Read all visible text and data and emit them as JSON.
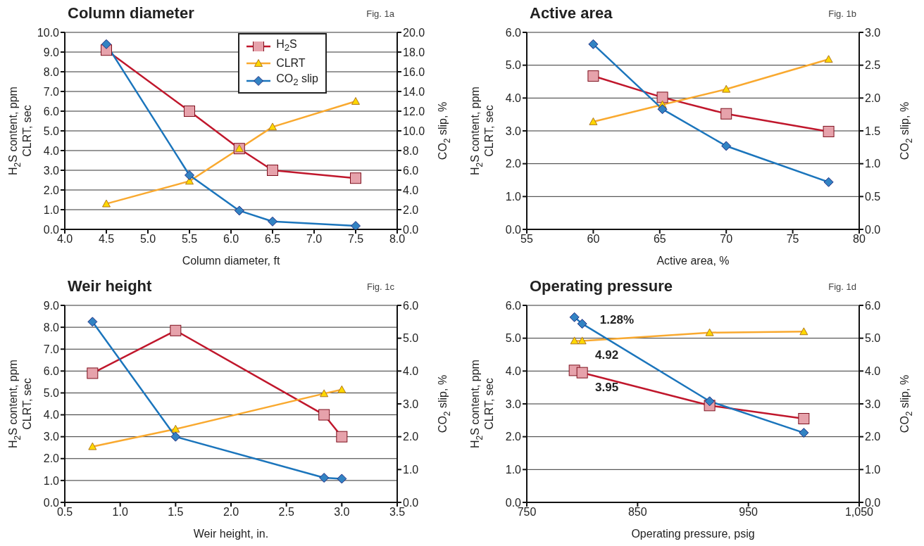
{
  "chart_data": [
    {
      "type": "line",
      "title": "Column diameter",
      "subtitle": "Fig. 1a",
      "xlabel": "Column diameter, ft",
      "ylabel": "H$_{2}$S content, ppm\nCLRT, sec",
      "y2label": "CO$_{2}$ slip, %",
      "legend": "top right",
      "grid": "y",
      "x": [
        4.5,
        5.5,
        6.1,
        6.5,
        7.5
      ],
      "series": [
        {
          "name": "H$_{2}$S",
          "color": "#c0172c",
          "marker": "square",
          "values": [
            9.1,
            6.0,
            4.1,
            3.0,
            2.6
          ]
        },
        {
          "name": "CLRT",
          "color": "#f9a92f",
          "marker": "triangle",
          "values": [
            1.3,
            2.45,
            4.1,
            5.2,
            6.5
          ]
        },
        {
          "name": "CO$_{2}$ slip",
          "color": "#1b75bc",
          "marker": "diamond",
          "axis": "y2",
          "values": [
            18.8,
            5.5,
            1.9,
            0.8,
            0.35
          ]
        }
      ],
      "xlim": [
        4,
        8
      ],
      "xticks": [
        {
          "value": 4,
          "label": "4.0"
        },
        {
          "value": 4.5,
          "label": "4.5"
        },
        {
          "value": 5,
          "label": "5.0"
        },
        {
          "value": 5.5,
          "label": "5.5"
        },
        {
          "value": 6,
          "label": "6.0"
        },
        {
          "value": 6.5,
          "label": "6.5"
        },
        {
          "value": 7,
          "label": "7.0"
        },
        {
          "value": 7.5,
          "label": "7.5"
        },
        {
          "value": 8,
          "label": "8.0"
        }
      ],
      "ylim": [
        0,
        10
      ],
      "yticks": [
        {
          "value": 0,
          "label": "0.0"
        },
        {
          "value": 1,
          "label": "1.0"
        },
        {
          "value": 2,
          "label": "2.0"
        },
        {
          "value": 3,
          "label": "3.0"
        },
        {
          "value": 4,
          "label": "4.0"
        },
        {
          "value": 5,
          "label": "5.0"
        },
        {
          "value": 6,
          "label": "6.0"
        },
        {
          "value": 7,
          "label": "7.0"
        },
        {
          "value": 8,
          "label": "8.0"
        },
        {
          "value": 9,
          "label": "9.0"
        },
        {
          "value": 10,
          "label": "10.0"
        }
      ],
      "y2lim": [
        0,
        20
      ],
      "y2ticks": [
        {
          "value": 0,
          "label": "0.0"
        },
        {
          "value": 2,
          "label": "2.0"
        },
        {
          "value": 4,
          "label": "4.0"
        },
        {
          "value": 6,
          "label": "6.0"
        },
        {
          "value": 8,
          "label": "8.0"
        },
        {
          "value": 10,
          "label": "10.0"
        },
        {
          "value": 12,
          "label": "12.0"
        },
        {
          "value": 14,
          "label": "14.0"
        },
        {
          "value": 16,
          "label": "16.0"
        },
        {
          "value": 18,
          "label": "18.0"
        },
        {
          "value": 20,
          "label": "20.0"
        }
      ]
    },
    {
      "type": "line",
      "title": "Active area",
      "subtitle": "Fig. 1b",
      "xlabel": "Active area, %",
      "ylabel": "H$_{2}$S content, ppm\nCLRT, sec",
      "y2label": "CO$_{2}$ slip, %",
      "grid": "y",
      "x": [
        60,
        65.2,
        70,
        77.7
      ],
      "series": [
        {
          "color": "#c0172c",
          "marker": "square",
          "values": [
            4.67,
            4.02,
            3.52,
            2.98
          ]
        },
        {
          "color": "#f9a92f",
          "marker": "triangle",
          "values": [
            3.28,
            3.8,
            4.27,
            5.18
          ]
        },
        {
          "color": "#1b75bc",
          "marker": "diamond",
          "axis": "y2",
          "values": [
            2.82,
            1.83,
            1.27,
            0.72
          ]
        }
      ],
      "xlim": [
        55,
        80
      ],
      "xticks": [
        55,
        60,
        65,
        70,
        75,
        80
      ],
      "ylim": [
        0,
        6
      ],
      "yticks": [
        {
          "value": 0,
          "label": "0.0"
        },
        {
          "value": 1,
          "label": "1.0"
        },
        {
          "value": 2,
          "label": "2.0"
        },
        {
          "value": 3,
          "label": "3.0"
        },
        {
          "value": 4,
          "label": "4.0"
        },
        {
          "value": 5,
          "label": "5.0"
        },
        {
          "value": 6,
          "label": "6.0"
        }
      ],
      "y2lim": [
        0,
        3
      ],
      "y2ticks": [
        {
          "value": 0,
          "label": "0.0"
        },
        {
          "value": 0.5,
          "label": "0.5"
        },
        {
          "value": 1,
          "label": "1.0"
        },
        {
          "value": 1.5,
          "label": "1.5"
        },
        {
          "value": 2,
          "label": "2.0"
        },
        {
          "value": 2.5,
          "label": "2.5"
        },
        {
          "value": 3,
          "label": "3.0"
        }
      ]
    },
    {
      "type": "line",
      "title": "Weir height",
      "subtitle": "Fig. 1c",
      "xlabel": "Weir height, in.",
      "ylabel": "H$_{2}$S content, ppm\nCLRT, sec",
      "y2label": "CO$_{2}$ slip, %",
      "grid": "y",
      "x": [
        0.75,
        1.5,
        2.84,
        3.0
      ],
      "series": [
        {
          "color": "#c0172c",
          "marker": "square",
          "values": [
            5.9,
            7.85,
            4.0,
            3.0
          ]
        },
        {
          "color": "#f9a92f",
          "marker": "triangle",
          "values": [
            2.55,
            3.35,
            4.97,
            5.15
          ]
        },
        {
          "color": "#1b75bc",
          "marker": "diamond",
          "axis": "y2",
          "values": [
            5.5,
            2.0,
            0.75,
            0.72
          ]
        }
      ],
      "xlim": [
        0.5,
        3.5
      ],
      "xticks": [
        0.5,
        {
          "value": 1,
          "label": "1.0"
        },
        1.5,
        {
          "value": 2,
          "label": "2.0"
        },
        2.5,
        {
          "value": 3,
          "label": "3.0"
        },
        3.5
      ],
      "ylim": [
        0,
        9
      ],
      "yticks": [
        {
          "value": 0,
          "label": "0.0"
        },
        {
          "value": 1,
          "label": "1.0"
        },
        {
          "value": 2,
          "label": "2.0"
        },
        {
          "value": 3,
          "label": "3.0"
        },
        {
          "value": 4,
          "label": "4.0"
        },
        {
          "value": 5,
          "label": "5.0"
        },
        {
          "value": 6,
          "label": "6.0"
        },
        {
          "value": 7,
          "label": "7.0"
        },
        {
          "value": 8,
          "label": "8.0"
        },
        {
          "value": 9,
          "label": "9.0"
        }
      ],
      "y2lim": [
        0,
        6
      ],
      "y2ticks": [
        {
          "value": 0,
          "label": "0.0"
        },
        {
          "value": 1,
          "label": "1.0"
        },
        {
          "value": 2,
          "label": "2.0"
        },
        {
          "value": 3,
          "label": "3.0"
        },
        {
          "value": 4,
          "label": "4.0"
        },
        {
          "value": 5,
          "label": "5.0"
        },
        {
          "value": 6,
          "label": "6.0"
        }
      ]
    },
    {
      "type": "line",
      "title": "Operating pressure",
      "subtitle": "Fig. 1d",
      "xlabel": "Operating pressure, psig",
      "ylabel": "H$_{2}$S content, ppm\nCLRT, sec",
      "y2label": "CO$_{2}$ slip, %",
      "grid": "y",
      "x": [
        793,
        800,
        915,
        1000
      ],
      "series": [
        {
          "color": "#c0172c",
          "marker": "square",
          "values": [
            4.02,
            3.95,
            2.95,
            2.55
          ]
        },
        {
          "color": "#f9a92f",
          "marker": "triangle",
          "values": [
            4.92,
            4.92,
            5.17,
            5.2
          ]
        },
        {
          "color": "#1b75bc",
          "marker": "diamond",
          "axis": "y2",
          "values": [
            5.64,
            5.44,
            3.08,
            2.12
          ]
        }
      ],
      "xlim": [
        750,
        1050
      ],
      "xticks": [
        750,
        850,
        950,
        {
          "value": 1050,
          "label": "1,050"
        }
      ],
      "ylim": [
        0,
        6
      ],
      "yticks": [
        {
          "value": 0,
          "label": "0.0"
        },
        {
          "value": 1,
          "label": "1.0"
        },
        {
          "value": 2,
          "label": "2.0"
        },
        {
          "value": 3,
          "label": "3.0"
        },
        {
          "value": 4,
          "label": "4.0"
        },
        {
          "value": 5,
          "label": "5.0"
        },
        {
          "value": 6,
          "label": "6.0"
        }
      ],
      "y2lim": [
        0,
        6
      ],
      "y2ticks": [
        {
          "value": 0,
          "label": "0.0"
        },
        {
          "value": 1,
          "label": "1.0"
        },
        {
          "value": 2,
          "label": "2.0"
        },
        {
          "value": 3,
          "label": "3.0"
        },
        {
          "value": 4,
          "label": "4.0"
        },
        {
          "value": 5,
          "label": "5.0"
        },
        {
          "value": 6,
          "label": "6.0"
        }
      ],
      "annotations": [
        "1.28%",
        {
          "text": "4.92",
          "x": 800,
          "y": 4.92
        },
        {
          "text": "3.95",
          "x": 800,
          "y": 3.95
        }
      ]
    }
  ]
}
